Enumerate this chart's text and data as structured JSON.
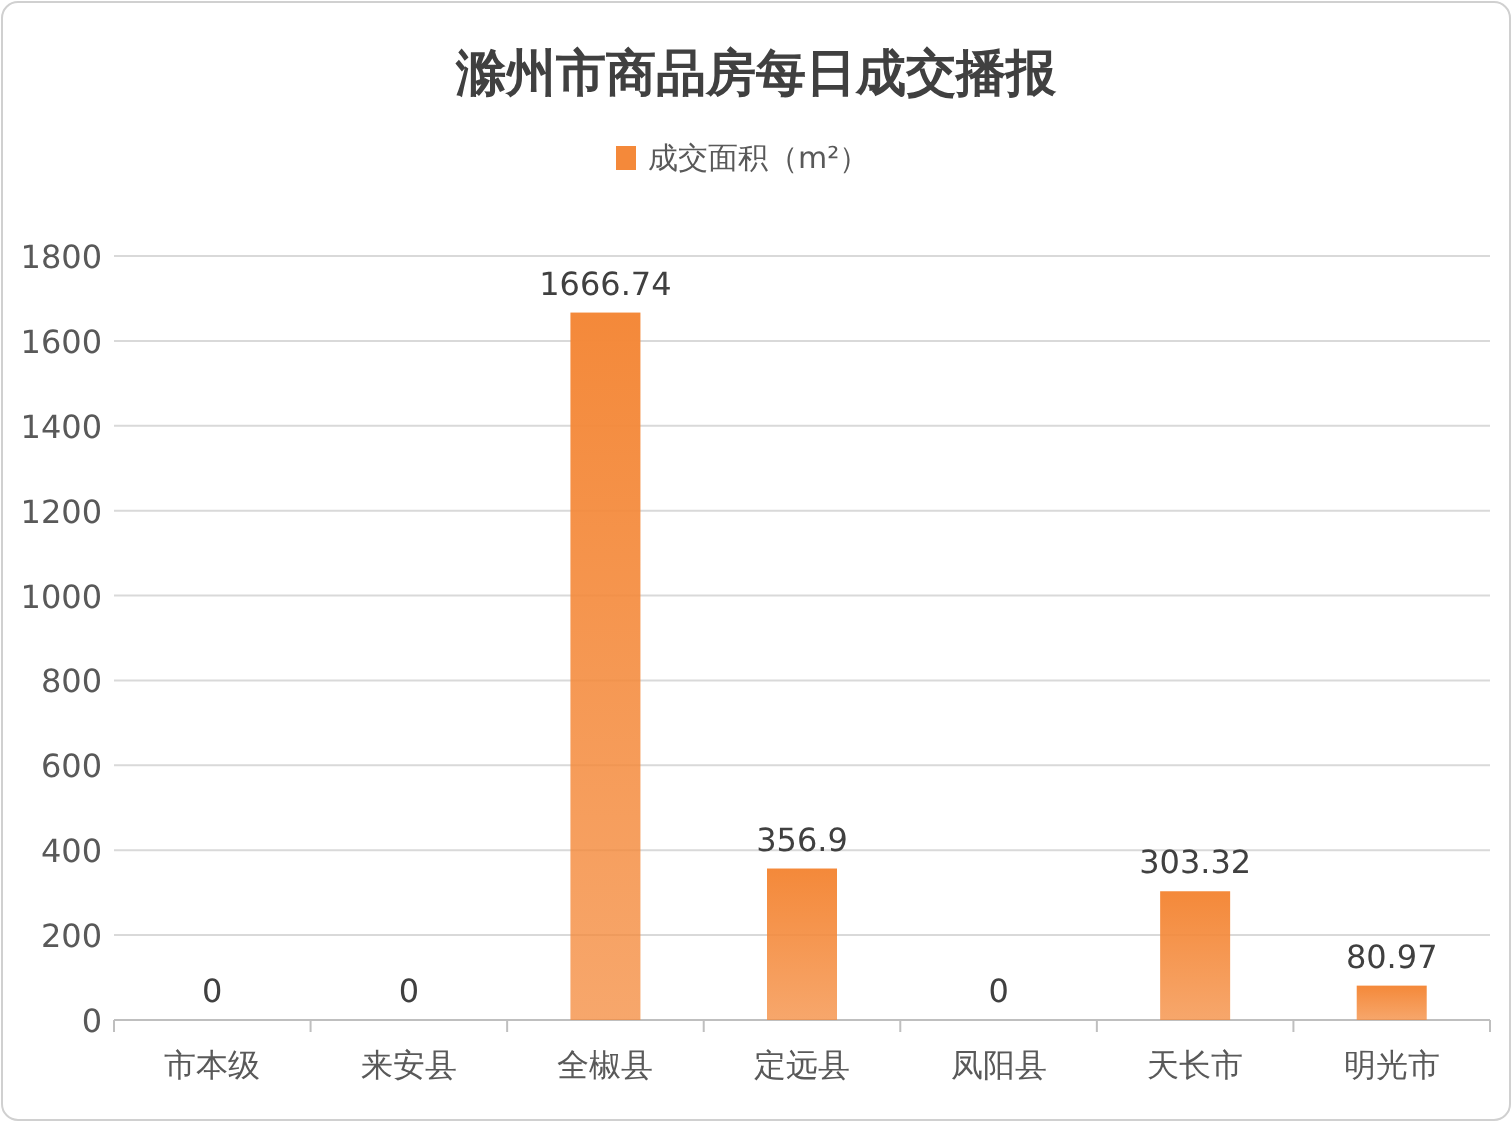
{
  "chart_data": {
    "type": "bar",
    "title": "滁州市商品房每日成交播报",
    "categories": [
      "市本级",
      "来安县",
      "全椒县",
      "定远县",
      "凤阳县",
      "天长市",
      "明光市"
    ],
    "series": [
      {
        "name": "成交面积（m²）",
        "color": "#f4893a",
        "values": [
          0,
          0,
          1666.74,
          356.9,
          0,
          303.32,
          80.97
        ]
      }
    ],
    "ylim": [
      0,
      1800
    ],
    "yticks": [
      0,
      200,
      400,
      600,
      800,
      1000,
      1200,
      1400,
      1600,
      1800
    ],
    "grid": "y",
    "legend": "top",
    "data_labels": true
  }
}
